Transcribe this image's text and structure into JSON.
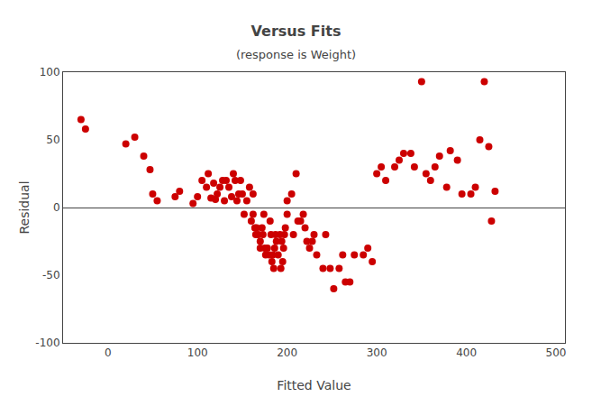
{
  "chart_data": {
    "type": "scatter",
    "title": "Versus Fits",
    "subtitle": "(response is Weight)",
    "xlabel": "Fitted Value",
    "ylabel": "Residual",
    "xlim": [
      -50,
      510
    ],
    "ylim": [
      -100,
      100
    ],
    "xticks": [
      0,
      100,
      200,
      300,
      400,
      500
    ],
    "yticks": [
      -100,
      -50,
      0,
      50,
      100
    ],
    "color": "#cc0000",
    "marker": "circle",
    "grid": false,
    "x": [
      -30,
      -25,
      20,
      30,
      40,
      47,
      50,
      55,
      75,
      80,
      95,
      100,
      105,
      110,
      112,
      115,
      118,
      120,
      122,
      125,
      128,
      130,
      132,
      135,
      138,
      140,
      142,
      144,
      146,
      148,
      150,
      152,
      155,
      158,
      160,
      162,
      162,
      164,
      165,
      166,
      168,
      170,
      170,
      172,
      173,
      174,
      175,
      176,
      178,
      180,
      181,
      182,
      183,
      184,
      185,
      186,
      187,
      188,
      190,
      192,
      193,
      194,
      195,
      196,
      197,
      198,
      200,
      200,
      205,
      207,
      210,
      212,
      215,
      218,
      220,
      222,
      225,
      228,
      230,
      233,
      240,
      243,
      248,
      252,
      258,
      262,
      265,
      270,
      275,
      285,
      290,
      295,
      300,
      305,
      310,
      320,
      325,
      330,
      338,
      342,
      350,
      355,
      360,
      365,
      370,
      378,
      382,
      390,
      395,
      405,
      410,
      415,
      420,
      425,
      428,
      432
    ],
    "values": [
      65,
      58,
      47,
      52,
      38,
      28,
      10,
      5,
      8,
      12,
      3,
      8,
      20,
      15,
      25,
      7,
      18,
      6,
      10,
      15,
      20,
      5,
      20,
      15,
      8,
      25,
      20,
      5,
      10,
      20,
      10,
      -5,
      5,
      15,
      -10,
      -5,
      10,
      -15,
      -20,
      -15,
      -20,
      -25,
      -30,
      -15,
      -20,
      -5,
      -30,
      -35,
      -30,
      -35,
      -10,
      -20,
      -40,
      -35,
      -45,
      -30,
      -20,
      -25,
      -35,
      -20,
      -45,
      -25,
      -40,
      -30,
      -20,
      -15,
      5,
      -5,
      10,
      -20,
      25,
      -10,
      -10,
      -5,
      -15,
      -25,
      -30,
      -25,
      -20,
      -35,
      -45,
      -20,
      -45,
      -60,
      -45,
      -35,
      -55,
      -55,
      -35,
      -35,
      -30,
      -40,
      25,
      30,
      20,
      30,
      35,
      40,
      40,
      30,
      93,
      25,
      20,
      30,
      38,
      15,
      42,
      35,
      10,
      10,
      15,
      50,
      93,
      45,
      -10,
      12
    ]
  }
}
